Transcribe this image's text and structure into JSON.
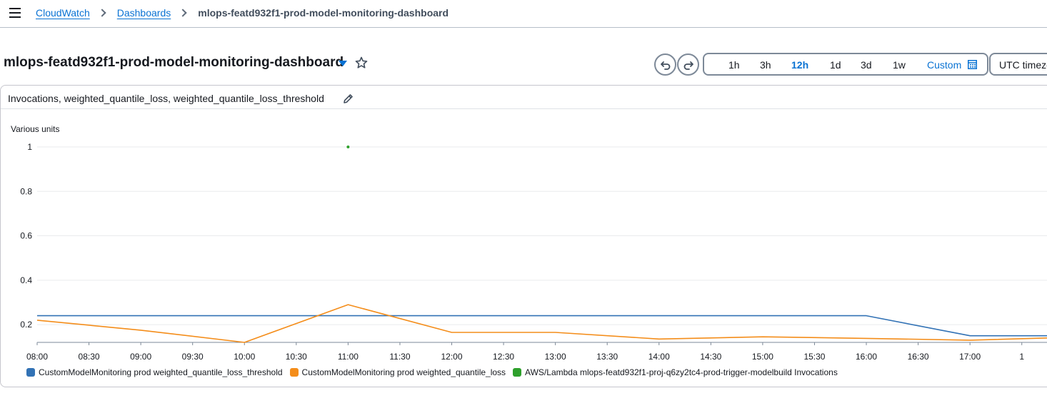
{
  "breadcrumb": {
    "items": [
      "CloudWatch",
      "Dashboards"
    ],
    "current": "mlops-featd932f1-prod-model-monitoring-dashboard"
  },
  "dashboard": {
    "title": "mlops-featd932f1-prod-model-monitoring-dashboard"
  },
  "time_range": {
    "options": [
      "1h",
      "3h",
      "12h",
      "1d",
      "3d",
      "1w"
    ],
    "active": "12h",
    "custom_label": "Custom",
    "timezone_label": "UTC timezone"
  },
  "widget": {
    "title": "Invocations, weighted_quantile_loss, weighted_quantile_loss_threshold"
  },
  "colors": {
    "accent": "#0972d3",
    "threshold": "#3272b5",
    "loss": "#f48d1a",
    "invocations": "#2ea02c"
  },
  "chart_data": {
    "type": "line",
    "ylabel": "Various units",
    "yticks": [
      "0.2",
      "0.4",
      "0.6",
      "0.8",
      "1"
    ],
    "ylim": [
      0.12,
      1.0
    ],
    "xticks": [
      "08:00",
      "08:30",
      "09:00",
      "09:30",
      "10:00",
      "10:30",
      "11:00",
      "11:30",
      "12:00",
      "12:30",
      "13:00",
      "13:30",
      "14:00",
      "14:30",
      "15:00",
      "15:30",
      "16:00",
      "16:30",
      "17:00",
      "1"
    ],
    "xlim_hours": [
      8.0,
      17.75
    ],
    "series": [
      {
        "name": "CustomModelMonitoring prod weighted_quantile_loss_threshold",
        "color": "#3272b5",
        "x": [
          8.0,
          16.0,
          17.0,
          17.75
        ],
        "y": [
          0.24,
          0.24,
          0.15,
          0.15
        ]
      },
      {
        "name": "CustomModelMonitoring prod weighted_quantile_loss",
        "color": "#f48d1a",
        "x": [
          8.0,
          9.0,
          10.0,
          11.0,
          12.0,
          13.0,
          14.0,
          15.0,
          16.0,
          17.0,
          17.75
        ],
        "y": [
          0.22,
          0.175,
          0.12,
          0.29,
          0.165,
          0.165,
          0.135,
          0.145,
          0.138,
          0.13,
          0.14
        ]
      },
      {
        "name": "AWS/Lambda mlops-featd932f1-proj-q6zy2tc4-prod-trigger-modelbuild Invocations",
        "color": "#2ea02c",
        "x": [
          11.0
        ],
        "y": [
          1.0
        ]
      }
    ]
  }
}
